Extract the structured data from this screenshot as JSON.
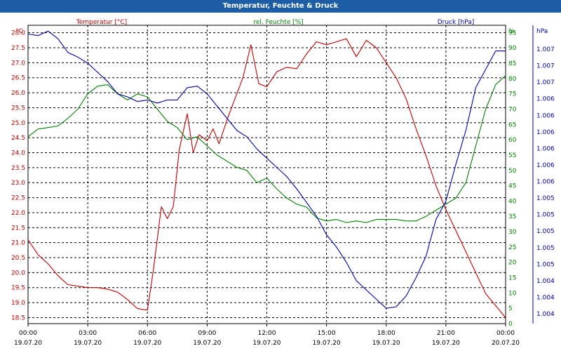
{
  "window": {
    "title": "Temperatur, Feuchte & Druck"
  },
  "colors": {
    "temperature": "#c00000",
    "humidity": "#008000",
    "pressure": "#0000a8",
    "grid": "#000000",
    "title_bar": "#1c5da6"
  },
  "chart_data": {
    "type": "line",
    "title": "Temperatur, Feuchte & Druck",
    "grid": true,
    "grid_style": "dashed",
    "x_axis": {
      "min_hours": 0,
      "max_hours": 24,
      "tick_times": [
        "00:00",
        "03:00",
        "06:00",
        "09:00",
        "12:00",
        "15:00",
        "18:00",
        "21:00",
        "00:00"
      ],
      "tick_dates": [
        "19.07.20",
        "19.07.20",
        "19.07.20",
        "19.07.20",
        "19.07.20",
        "19.07.20",
        "19.07.20",
        "19.07.20",
        "20.07.20"
      ]
    },
    "axes": {
      "temperature": {
        "label": "Temperatur [°C]",
        "unit": "°C",
        "min": 18.3,
        "max": 28.25,
        "ticks": [
          "28.0",
          "27.5",
          "27.0",
          "26.5",
          "26.0",
          "25.5",
          "25.0",
          "24.5",
          "24.0",
          "23.5",
          "23.0",
          "22.5",
          "22.0",
          "21.5",
          "21.0",
          "20.5",
          "20.0",
          "19.5",
          "19.0",
          "18.5"
        ]
      },
      "humidity": {
        "label": "rel. Feuchte [%]",
        "unit": "%",
        "min": 0,
        "max": 100,
        "ticks": [
          "100",
          "95",
          "90",
          "85",
          "80",
          "75",
          "70",
          "65",
          "60",
          "55",
          "50",
          "45",
          "40",
          "35",
          "30",
          "25",
          "20",
          "15",
          "10",
          "5",
          "0"
        ]
      },
      "pressure": {
        "label": "Druck [hPa]",
        "unit": "hPa",
        "ticks": [
          "1.007",
          "1.007",
          "1.007",
          "1.006",
          "1.006",
          "1.006",
          "1.006",
          "1.006",
          "1.006",
          "1.005",
          "1.005",
          "1.005",
          "1.005",
          "1.005",
          "1.004",
          "1.004",
          "1.004"
        ]
      }
    },
    "series": [
      {
        "name": "Temperatur [°C]",
        "axis": "temperature",
        "color": "#c00000",
        "x": [
          0,
          0.5,
          1,
          1.5,
          2,
          2.5,
          3,
          3.5,
          4,
          4.5,
          5,
          5.5,
          6,
          6.3,
          6.7,
          7,
          7.3,
          7.6,
          8,
          8.3,
          8.6,
          9,
          9.3,
          9.6,
          10,
          10.4,
          10.8,
          11.2,
          11.6,
          12,
          12.5,
          13,
          13.5,
          14,
          14.5,
          15,
          15.5,
          16,
          16.5,
          17,
          17.5,
          18,
          18.5,
          19,
          19.5,
          20,
          20.5,
          21,
          21.5,
          22,
          22.5,
          23,
          23.5,
          24
        ],
        "y": [
          21.1,
          20.6,
          20.3,
          19.9,
          19.6,
          19.55,
          19.5,
          19.5,
          19.45,
          19.35,
          19.1,
          18.8,
          18.75,
          20.1,
          22.2,
          21.8,
          22.2,
          24.1,
          25.3,
          24.0,
          24.6,
          24.4,
          24.8,
          24.3,
          25.1,
          25.8,
          26.5,
          27.6,
          26.3,
          26.2,
          26.7,
          26.85,
          26.8,
          27.3,
          27.7,
          27.6,
          27.7,
          27.8,
          27.2,
          27.75,
          27.5,
          27.0,
          26.5,
          25.8,
          24.8,
          23.9,
          22.9,
          22.1,
          21.4,
          20.7,
          20.0,
          19.3,
          18.9,
          18.5
        ]
      },
      {
        "name": "rel. Feuchte [%]",
        "axis": "humidity",
        "color": "#008000",
        "x": [
          0,
          0.5,
          1,
          1.5,
          2,
          2.5,
          3,
          3.5,
          4,
          4.5,
          5,
          5.5,
          6,
          6.5,
          7,
          7.5,
          8,
          8.5,
          9,
          9.5,
          10,
          10.5,
          11,
          11.5,
          12,
          12.5,
          13,
          13.5,
          14,
          14.5,
          15,
          15.5,
          16,
          16.5,
          17,
          17.5,
          18,
          18.5,
          19,
          19.5,
          20,
          20.5,
          21,
          21.5,
          22,
          22.5,
          23,
          23.5,
          24
        ],
        "y": [
          61,
          63.5,
          64,
          64.5,
          67,
          70,
          75,
          77.5,
          78,
          75,
          73,
          75,
          74,
          70,
          66,
          64,
          60,
          61,
          58,
          55,
          53,
          51,
          50,
          46,
          47.5,
          44,
          41,
          39,
          38,
          34.5,
          33.5,
          34,
          33,
          33.5,
          33,
          34,
          34,
          34,
          33.5,
          33.5,
          35,
          37,
          39,
          41,
          46,
          58,
          70,
          78,
          81
        ]
      },
      {
        "name": "Druck [hPa]",
        "axis": "pressure",
        "color": "#0000a8",
        "x": [
          0,
          0.5,
          1,
          1.5,
          2,
          2.5,
          3,
          3.5,
          4,
          4.5,
          5,
          5.5,
          6,
          6.5,
          7,
          7.5,
          8,
          8.5,
          9,
          9.5,
          10,
          10.5,
          11,
          11.5,
          12,
          12.5,
          13,
          13.5,
          14,
          14.5,
          15,
          15.5,
          16,
          16.5,
          17,
          17.5,
          18,
          18.5,
          19,
          19.5,
          20,
          20.5,
          21,
          21.5,
          22,
          22.5,
          23,
          23.5,
          24
        ],
        "y": [
          94.5,
          94,
          95.5,
          93,
          88.5,
          87,
          85,
          82,
          79,
          75,
          74,
          72.5,
          73,
          72,
          73,
          73,
          77,
          77.5,
          75,
          71,
          67,
          63,
          61,
          57,
          54,
          51,
          48,
          44,
          39.5,
          35,
          29,
          25,
          20,
          14,
          11,
          8,
          5,
          5.5,
          9,
          15,
          22,
          34,
          40,
          52,
          63,
          77,
          83,
          89,
          89
        ]
      }
    ]
  }
}
